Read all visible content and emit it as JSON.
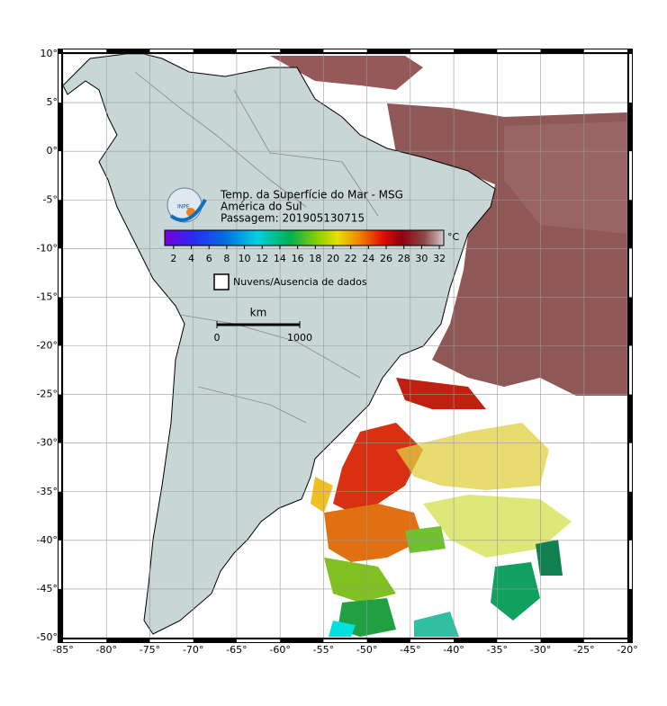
{
  "map": {
    "title_lines": [
      "Temp. da Superfície do Mar - MSG",
      "América do Sul",
      "Passagem: 201905130715"
    ],
    "logo": "INPE",
    "xlim": [
      -85,
      -20
    ],
    "ylim": [
      -50,
      10
    ],
    "lon_ticks": [
      {
        "value": -85,
        "label": "-85°"
      },
      {
        "value": -80,
        "label": "-80°"
      },
      {
        "value": -75,
        "label": "-75°"
      },
      {
        "value": -70,
        "label": "-70°"
      },
      {
        "value": -65,
        "label": "-65°"
      },
      {
        "value": -60,
        "label": "-60°"
      },
      {
        "value": -55,
        "label": "-55°"
      },
      {
        "value": -50,
        "label": "-50°"
      },
      {
        "value": -45,
        "label": "-45°"
      },
      {
        "value": -40,
        "label": "-40°"
      },
      {
        "value": -35,
        "label": "-35°"
      },
      {
        "value": -30,
        "label": "-30°"
      },
      {
        "value": -25,
        "label": "-25°"
      },
      {
        "value": -20,
        "label": "-20°"
      }
    ],
    "lat_ticks": [
      {
        "value": 10,
        "label": "10°"
      },
      {
        "value": 5,
        "label": "5°"
      },
      {
        "value": 0,
        "label": "0°"
      },
      {
        "value": -5,
        "label": "-5°"
      },
      {
        "value": -10,
        "label": "-10°"
      },
      {
        "value": -15,
        "label": "-15°"
      },
      {
        "value": -20,
        "label": "-20°"
      },
      {
        "value": -25,
        "label": "-25°"
      },
      {
        "value": -30,
        "label": "-30°"
      },
      {
        "value": -35,
        "label": "-35°"
      },
      {
        "value": -40,
        "label": "-40°"
      },
      {
        "value": -45,
        "label": "-45°"
      },
      {
        "value": -50,
        "label": "-50°"
      }
    ],
    "colorbar": {
      "unit": "°C",
      "lim": [
        1,
        32.5
      ],
      "ticks": [
        2,
        4,
        6,
        8,
        10,
        12,
        14,
        16,
        18,
        20,
        22,
        24,
        26,
        28,
        30,
        32
      ]
    },
    "legend": "Nuvens/Ausencia de dados",
    "scale": {
      "unit": "km",
      "ticks": [
        0,
        1000
      ]
    }
  }
}
